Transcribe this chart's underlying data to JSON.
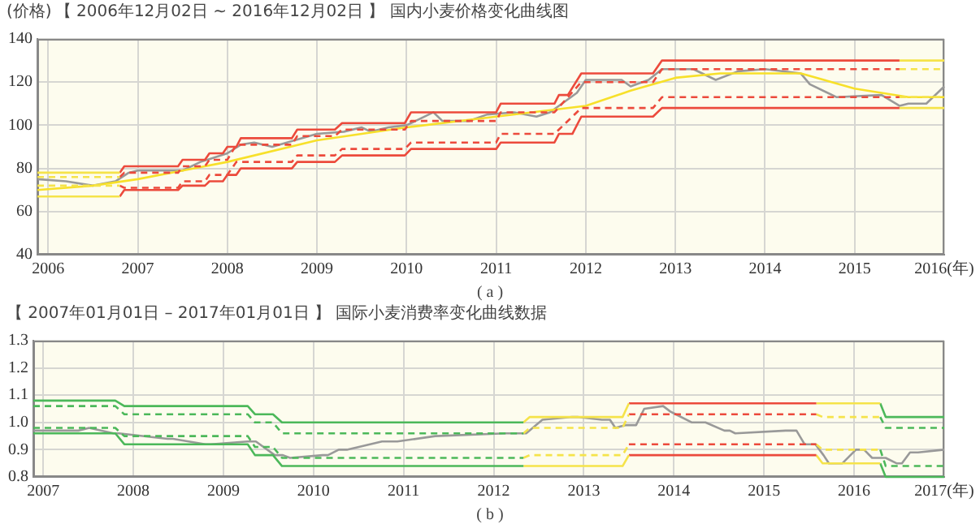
{
  "chart_data": [
    {
      "type": "line",
      "ylabel": "(价格)",
      "title": "【 2006年12月02日 ~ 2016年12月02日 】 国内小麦价格变化曲线图",
      "annotations": [
        "( a )"
      ],
      "xlim": [
        2005.88,
        2016
      ],
      "xticks": [
        2006,
        2007,
        2008,
        2009,
        2010,
        2011,
        2012,
        2013,
        2014,
        2015,
        {
          "value": 2016,
          "label": "2016(年)"
        }
      ],
      "ylim": [
        40,
        140
      ],
      "yticks": [
        40,
        60,
        80,
        100,
        120,
        140
      ],
      "grid": true,
      "legend": false,
      "marker": "none",
      "series": [
        {
          "color": "#f5e34a",
          "x": [
            2005.88,
            2006.8
          ],
          "values": [
            78,
            78
          ]
        },
        {
          "color": "#ec4a3c",
          "x": [
            2006.8,
            2006.85,
            2007.45,
            2007.5,
            2007.75,
            2007.8,
            2007.95,
            2008.0,
            2008.1,
            2008.15,
            2008.72,
            2008.78,
            2009.2,
            2009.28,
            2009.98,
            2010.05,
            2011.0,
            2011.05,
            2011.65,
            2011.7,
            2011.8,
            2011.95,
            2012.75,
            2012.85,
            2015.5
          ],
          "values": [
            78,
            81,
            81,
            84,
            84,
            87,
            87,
            90,
            90,
            94,
            94,
            98,
            98,
            101,
            101,
            106,
            106,
            110,
            110,
            114,
            114,
            124,
            124,
            130,
            130
          ]
        },
        {
          "color": "#f5e34a",
          "x": [
            2015.5,
            2016
          ],
          "values": [
            130,
            130
          ]
        },
        {
          "color": "#f5e34a",
          "line_style": "dashed",
          "x": [
            2005.88,
            2006.8
          ],
          "values": [
            76,
            76
          ]
        },
        {
          "color": "#ec4a3c",
          "line_style": "dashed",
          "x": [
            2006.8,
            2006.85,
            2007.45,
            2007.5,
            2007.75,
            2007.8,
            2008.0,
            2008.1,
            2008.72,
            2008.78,
            2009.2,
            2009.28,
            2009.98,
            2010.05,
            2011.0,
            2011.05,
            2011.65,
            2011.95,
            2012.75,
            2012.85,
            2015.5
          ],
          "values": [
            76,
            78,
            78,
            81,
            81,
            84,
            84,
            91,
            91,
            95,
            95,
            98,
            98,
            102,
            102,
            106,
            106,
            120,
            120,
            126,
            126
          ]
        },
        {
          "color": "#f5e34a",
          "line_style": "dashed",
          "x": [
            2015.5,
            2016
          ],
          "values": [
            126,
            126
          ]
        },
        {
          "color": "#f5e34a",
          "line_style": "dashed",
          "x": [
            2005.88,
            2006.8
          ],
          "values": [
            72,
            72
          ]
        },
        {
          "color": "#ec4a3c",
          "line_style": "dashed",
          "x": [
            2006.8,
            2006.85,
            2007.45,
            2007.5,
            2007.75,
            2007.8,
            2008.0,
            2008.1,
            2008.72,
            2008.78,
            2009.2,
            2009.28,
            2009.98,
            2010.05,
            2011.0,
            2011.05,
            2011.65,
            2011.95,
            2012.75,
            2012.85,
            2015.5
          ],
          "values": [
            72,
            71,
            71,
            74,
            74,
            77,
            77,
            83,
            83,
            86,
            86,
            89,
            89,
            92,
            92,
            96,
            96,
            108,
            108,
            113,
            113
          ]
        },
        {
          "color": "#f5e34a",
          "line_style": "dashed",
          "x": [
            2015.5,
            2016
          ],
          "values": [
            113,
            113
          ]
        },
        {
          "color": "#f5e34a",
          "x": [
            2005.88,
            2006.8
          ],
          "values": [
            67,
            67
          ]
        },
        {
          "color": "#ec4a3c",
          "x": [
            2006.8,
            2006.85,
            2007.45,
            2007.5,
            2007.75,
            2007.8,
            2007.95,
            2008.0,
            2008.1,
            2008.15,
            2008.72,
            2008.78,
            2009.2,
            2009.28,
            2009.98,
            2010.05,
            2011.0,
            2011.05,
            2011.65,
            2011.7,
            2011.85,
            2011.95,
            2012.75,
            2012.85,
            2015.5
          ],
          "values": [
            67,
            70,
            70,
            72,
            72,
            74,
            74,
            77,
            77,
            80,
            80,
            83,
            83,
            86,
            86,
            89,
            89,
            92,
            92,
            96,
            96,
            104,
            104,
            108,
            108
          ]
        },
        {
          "color": "#f5e34a",
          "x": [
            2015.5,
            2016
          ],
          "values": [
            108,
            108
          ]
        },
        {
          "color": "#f7e02a",
          "x": [
            2005.88,
            2006.5,
            2007,
            2008,
            2009,
            2010,
            2011,
            2012,
            2012.5,
            2013,
            2013.5,
            2014,
            2014.4,
            2015,
            2015.6,
            2016
          ],
          "values": [
            70,
            72,
            75,
            83,
            93,
            99,
            104,
            109,
            116,
            122,
            124,
            124,
            124,
            117,
            113,
            113
          ]
        },
        {
          "color": "#999999",
          "x": [
            2005.88,
            2006.2,
            2006.5,
            2006.75,
            2006.9,
            2007,
            2007.5,
            2007.7,
            2008,
            2008.15,
            2008.3,
            2008.5,
            2008.75,
            2009,
            2009.3,
            2009.5,
            2009.6,
            2009.8,
            2010,
            2010.1,
            2010.3,
            2010.4,
            2010.7,
            2010.9,
            2011.2,
            2011.45,
            2011.6,
            2011.9,
            2012,
            2012.4,
            2012.5,
            2012.7,
            2012.85,
            2013.2,
            2013.45,
            2013.7,
            2014,
            2014.4,
            2014.5,
            2014.8,
            2015.3,
            2015.5,
            2015.6,
            2015.8,
            2016
          ],
          "values": [
            75,
            74,
            72,
            74,
            78,
            79,
            79,
            83,
            87,
            91,
            92,
            90,
            93,
            96,
            97,
            99,
            97,
            99,
            100,
            102,
            106,
            102,
            102,
            105,
            106,
            104,
            106,
            115,
            121,
            121,
            118,
            121,
            126,
            126,
            121,
            125,
            126,
            124,
            119,
            113,
            114,
            109,
            110,
            110,
            118
          ]
        }
      ]
    },
    {
      "type": "line",
      "title": "【 2007年01月01日 – 2017年01月01日 】 国际小麦消费率变化曲线数据",
      "annotations": [
        "( b )"
      ],
      "xlim": [
        2006.89,
        2017
      ],
      "xticks": [
        2007,
        2008,
        2009,
        2010,
        2011,
        2012,
        2013,
        2014,
        2015,
        2016,
        {
          "value": 2017,
          "label": "2017(年)"
        }
      ],
      "ylim": [
        0.8,
        1.3
      ],
      "yticks": [
        0.8,
        0.9,
        {
          "value": 1.0,
          "label": "1.0"
        },
        1.1,
        1.2,
        1.3
      ],
      "grid": true,
      "legend": false,
      "marker": "none",
      "series": [
        {
          "color": "#4cb85a",
          "x": [
            2006.89,
            2007.8,
            2007.9,
            2009.27,
            2009.35,
            2009.55,
            2009.65,
            2012.33
          ],
          "values": [
            1.08,
            1.08,
            1.06,
            1.06,
            1.03,
            1.03,
            1.0,
            1.0
          ]
        },
        {
          "color": "#f5e34a",
          "x": [
            2012.33,
            2012.4,
            2013.43,
            2013.5
          ],
          "values": [
            1.0,
            1.02,
            1.02,
            1.07
          ]
        },
        {
          "color": "#ec4a3c",
          "x": [
            2013.5,
            2015.58
          ],
          "values": [
            1.07,
            1.07
          ]
        },
        {
          "color": "#f5e34a",
          "x": [
            2015.58,
            2016.29
          ],
          "values": [
            1.07,
            1.07
          ]
        },
        {
          "color": "#4cb85a",
          "x": [
            2016.29,
            2016.35,
            2017
          ],
          "values": [
            1.07,
            1.02,
            1.02
          ]
        },
        {
          "color": "#4cb85a",
          "line_style": "dashed",
          "x": [
            2006.89,
            2007.8,
            2007.9,
            2009.27,
            2009.35,
            2009.55,
            2009.65,
            2012.33
          ],
          "values": [
            1.06,
            1.06,
            1.03,
            1.03,
            1.0,
            1.0,
            0.96,
            0.96
          ]
        },
        {
          "color": "#f5e34a",
          "line_style": "dashed",
          "x": [
            2012.33,
            2012.4,
            2013.43,
            2013.5
          ],
          "values": [
            0.96,
            0.98,
            0.98,
            1.03
          ]
        },
        {
          "color": "#ec4a3c",
          "line_style": "dashed",
          "x": [
            2013.5,
            2015.58
          ],
          "values": [
            1.03,
            1.03
          ]
        },
        {
          "color": "#f5e34a",
          "line_style": "dashed",
          "x": [
            2015.58,
            2015.65,
            2016.29
          ],
          "values": [
            1.03,
            1.02,
            1.02
          ]
        },
        {
          "color": "#4cb85a",
          "line_style": "dashed",
          "x": [
            2016.29,
            2016.35,
            2017
          ],
          "values": [
            1.02,
            0.98,
            0.98
          ]
        },
        {
          "color": "#4cb85a",
          "line_style": "dashed",
          "x": [
            2006.89,
            2007.8,
            2007.9,
            2009.27,
            2009.35,
            2009.55,
            2009.65,
            2012.33
          ],
          "values": [
            0.98,
            0.98,
            0.95,
            0.95,
            0.91,
            0.91,
            0.87,
            0.87
          ]
        },
        {
          "color": "#f5e34a",
          "line_style": "dashed",
          "x": [
            2012.33,
            2012.4,
            2013.43,
            2013.5
          ],
          "values": [
            0.87,
            0.88,
            0.88,
            0.92
          ]
        },
        {
          "color": "#ec4a3c",
          "line_style": "dashed",
          "x": [
            2013.5,
            2015.58
          ],
          "values": [
            0.92,
            0.92
          ]
        },
        {
          "color": "#f5e34a",
          "line_style": "dashed",
          "x": [
            2015.58,
            2015.65,
            2016.29
          ],
          "values": [
            0.92,
            0.9,
            0.9
          ]
        },
        {
          "color": "#4cb85a",
          "line_style": "dashed",
          "x": [
            2016.29,
            2016.35,
            2017
          ],
          "values": [
            0.9,
            0.84,
            0.84
          ]
        },
        {
          "color": "#4cb85a",
          "x": [
            2006.89,
            2007.8,
            2007.9,
            2009.27,
            2009.35,
            2009.55,
            2009.65,
            2012.33
          ],
          "values": [
            0.96,
            0.96,
            0.92,
            0.92,
            0.88,
            0.88,
            0.84,
            0.84
          ]
        },
        {
          "color": "#f5e34a",
          "x": [
            2012.33,
            2013.43,
            2013.5
          ],
          "values": [
            0.84,
            0.84,
            0.88
          ]
        },
        {
          "color": "#ec4a3c",
          "x": [
            2013.5,
            2015.58
          ],
          "values": [
            0.88,
            0.88
          ]
        },
        {
          "color": "#f5e34a",
          "x": [
            2015.58,
            2015.65,
            2016.29
          ],
          "values": [
            0.88,
            0.85,
            0.85
          ]
        },
        {
          "color": "#4cb85a",
          "x": [
            2016.29,
            2016.35,
            2017
          ],
          "values": [
            0.85,
            0.8,
            0.8
          ]
        },
        {
          "color": "#999999",
          "x": [
            2006.89,
            2007.39,
            2007.51,
            2007.78,
            2007.84,
            2008.38,
            2008.44,
            2008.8,
            2008.86,
            2009.27,
            2009.36,
            2009.57,
            2009.66,
            2009.74,
            2010.1,
            2010.16,
            2010.28,
            2010.37,
            2010.76,
            2010.93,
            2011.35,
            2012.13,
            2012.36,
            2012.54,
            2012.87,
            2012.93,
            2013.2,
            2013.29,
            2013.35,
            2013.46,
            2013.58,
            2013.67,
            2013.88,
            2013.96,
            2014.02,
            2014.2,
            2014.35,
            2014.56,
            2014.62,
            2014.68,
            2015.24,
            2015.36,
            2015.45,
            2015.57,
            2015.66,
            2015.72,
            2015.87,
            2016.02,
            2016.11,
            2016.2,
            2016.35,
            2016.47,
            2016.53,
            2016.62,
            2016.71,
            2017
          ],
          "values": [
            0.97,
            0.97,
            0.98,
            0.96,
            0.96,
            0.94,
            0.94,
            0.92,
            0.92,
            0.93,
            0.93,
            0.88,
            0.88,
            0.87,
            0.88,
            0.88,
            0.9,
            0.9,
            0.93,
            0.93,
            0.95,
            0.96,
            0.96,
            1.01,
            1.02,
            1.02,
            1.01,
            1.01,
            0.98,
            0.99,
            0.99,
            1.05,
            1.06,
            1.04,
            1.03,
            1.0,
            1.0,
            0.97,
            0.97,
            0.96,
            0.97,
            0.97,
            0.92,
            0.92,
            0.88,
            0.85,
            0.85,
            0.9,
            0.9,
            0.87,
            0.87,
            0.85,
            0.85,
            0.89,
            0.89,
            0.9
          ]
        }
      ]
    }
  ]
}
